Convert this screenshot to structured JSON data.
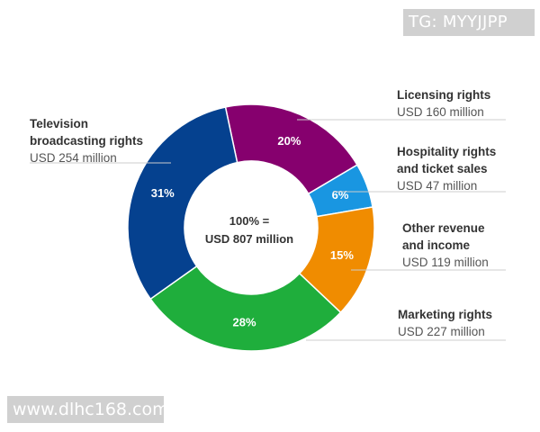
{
  "chart_data": {
    "type": "pie",
    "variant": "donut",
    "center_label": [
      "100% =",
      "USD 807 million"
    ],
    "total": 807,
    "unit": "USD million",
    "slices": [
      {
        "name": "Licensing rights",
        "label": [
          "Licensing rights"
        ],
        "percent_label": "20%",
        "value": 160,
        "value_label": "USD 160 million",
        "color": "#86006e"
      },
      {
        "name": "Hospitality rights and ticket sales",
        "label": [
          "Hospitality rights",
          "and ticket sales"
        ],
        "percent_label": "6%",
        "value": 47,
        "value_label": "USD 47 million",
        "color": "#1996e1"
      },
      {
        "name": "Other revenue and income",
        "label": [
          "Other revenue",
          "and income"
        ],
        "percent_label": "15%",
        "value": 119,
        "value_label": "USD 119 million",
        "color": "#f08c00"
      },
      {
        "name": "Marketing rights",
        "label": [
          "Marketing rights"
        ],
        "percent_label": "28%",
        "value": 227,
        "value_label": "USD 227 million",
        "color": "#1fae3c"
      },
      {
        "name": "Television broadcasting rights",
        "label": [
          "Television",
          "broadcasting rights"
        ],
        "percent_label": "31%",
        "value": 254,
        "value_label": "USD 254 million",
        "color": "#05418f"
      }
    ]
  },
  "watermarks": {
    "top": "TG: MYYJJPP",
    "bottom": "www.dlhc168.com"
  }
}
